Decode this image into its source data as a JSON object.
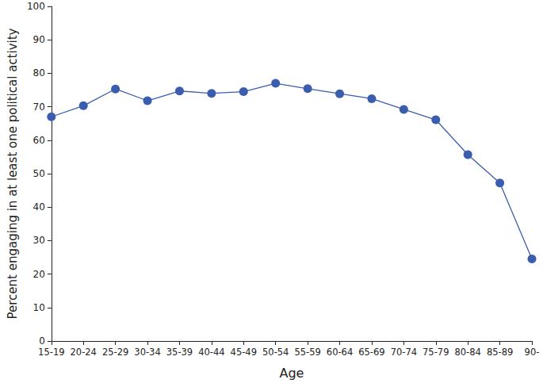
{
  "chart_data": {
    "type": "line",
    "xlabel": "Age",
    "ylabel": "Percent engaging in at least one political activity",
    "categories": [
      "15-19",
      "20-24",
      "25-29",
      "30-34",
      "35-39",
      "40-44",
      "45-49",
      "50-54",
      "55-59",
      "60-64",
      "65-69",
      "70-74",
      "75-79",
      "80-84",
      "85-89",
      "90-"
    ],
    "values": [
      67,
      70.3,
      75.3,
      71.8,
      74.7,
      74,
      74.5,
      77,
      75.4,
      73.9,
      72.4,
      69.2,
      66.1,
      55.7,
      47.2,
      24.5
    ],
    "color": "#3a5dae",
    "marker": "circle",
    "line_style": "solid",
    "ylim": [
      0,
      100
    ],
    "yticks": [
      0,
      10,
      20,
      30,
      40,
      50,
      60,
      70,
      80,
      90,
      100
    ],
    "grid": false
  }
}
